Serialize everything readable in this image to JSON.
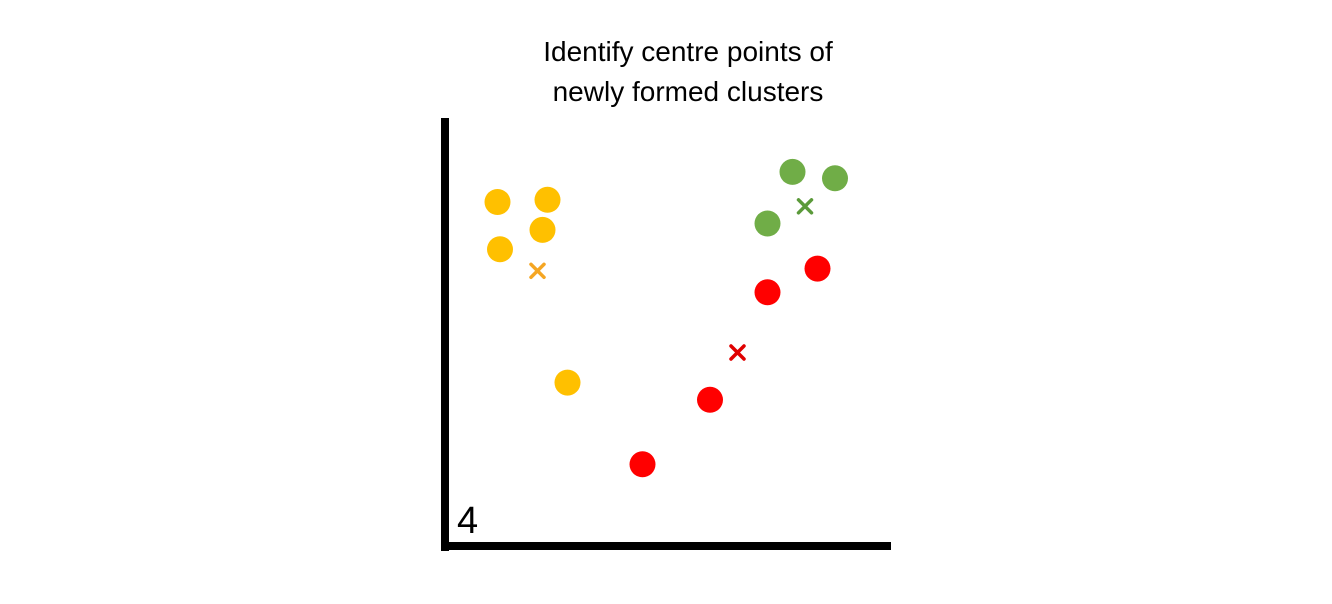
{
  "title": {
    "line1": "Identify centre points of",
    "line2": "newly formed clusters"
  },
  "step_number": "4",
  "colors": {
    "axes": "#000000",
    "cluster_yellow": "#FFC000",
    "cluster_red": "#FF0000",
    "cluster_green": "#70AD47",
    "centroid_yellow": "#F5A623",
    "centroid_red": "#E00000",
    "centroid_green": "#5B9A3A"
  },
  "clusters": [
    {
      "name": "yellow",
      "color_key": "cluster_yellow",
      "centroid_color_key": "centroid_yellow",
      "points": [
        [
          1.05,
          8.0
        ],
        [
          2.05,
          8.05
        ],
        [
          1.95,
          7.35
        ],
        [
          1.1,
          6.9
        ],
        [
          2.45,
          3.8
        ]
      ],
      "centroid": [
        1.85,
        6.4
      ]
    },
    {
      "name": "red",
      "color_key": "cluster_red",
      "centroid_color_key": "centroid_red",
      "points": [
        [
          3.95,
          1.9
        ],
        [
          5.3,
          3.4
        ],
        [
          6.45,
          5.9
        ],
        [
          7.45,
          6.45
        ]
      ],
      "centroid": [
        5.85,
        4.5
      ]
    },
    {
      "name": "green",
      "color_key": "cluster_green",
      "centroid_color_key": "centroid_green",
      "points": [
        [
          6.95,
          8.7
        ],
        [
          7.8,
          8.55
        ],
        [
          6.45,
          7.5
        ]
      ],
      "centroid": [
        7.2,
        7.9
      ]
    }
  ],
  "axis_range": {
    "x": [
      0,
      9
    ],
    "y": [
      0,
      10
    ]
  }
}
